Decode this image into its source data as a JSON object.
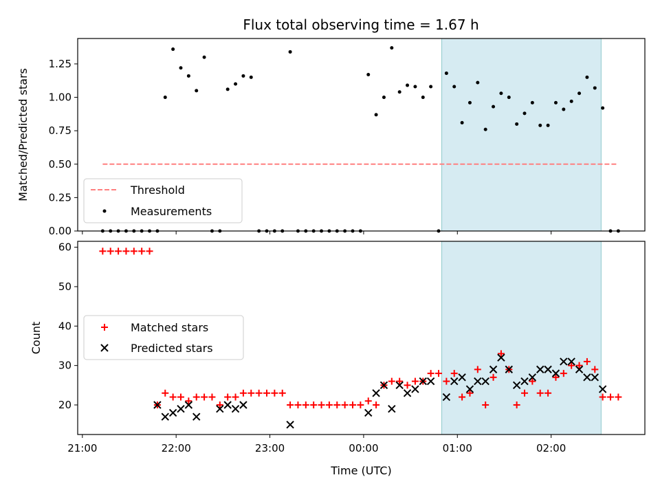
{
  "chart_data": [
    {
      "type": "scatter",
      "title": "Flux total observing time = 1.67 h",
      "ylabel": "Matched/Predicted stars",
      "xlabel": "",
      "ylim": [
        0,
        1.44
      ],
      "x_tick_labels": [],
      "y_ticks": [
        "0.00",
        "0.25",
        "0.50",
        "0.75",
        "1.00",
        "1.25"
      ],
      "highlight_region": {
        "x": [
          "00:50",
          "02:32"
        ],
        "color": "#add8e6"
      },
      "threshold": {
        "name": "Threshold",
        "y": 0.5,
        "x": [
          "21:13",
          "02:43"
        ],
        "color": "#ff7f7f"
      },
      "legend": [
        "Threshold",
        "Measurements"
      ],
      "legend_position": "lower-left",
      "series": [
        {
          "name": "Measurements",
          "color": "#000000",
          "x": [
            "21:13",
            "21:18",
            "21:23",
            "21:28",
            "21:33",
            "21:38",
            "21:43",
            "21:48",
            "21:53",
            "21:58",
            "22:03",
            "22:08",
            "22:13",
            "22:18",
            "22:23",
            "22:28",
            "22:33",
            "22:38",
            "22:43",
            "22:48",
            "22:53",
            "22:58",
            "23:03",
            "23:08",
            "23:13",
            "23:18",
            "23:23",
            "23:28",
            "23:33",
            "23:38",
            "23:43",
            "23:48",
            "23:53",
            "23:58",
            "00:03",
            "00:08",
            "00:13",
            "00:18",
            "00:23",
            "00:28",
            "00:33",
            "00:38",
            "00:43",
            "00:48",
            "00:53",
            "00:58",
            "01:03",
            "01:08",
            "01:13",
            "01:18",
            "01:23",
            "01:28",
            "01:33",
            "01:38",
            "01:43",
            "01:48",
            "01:53",
            "01:58",
            "02:03",
            "02:08",
            "02:13",
            "02:18",
            "02:23",
            "02:28",
            "02:33",
            "02:38",
            "02:43"
          ],
          "y": [
            0,
            0,
            0,
            0,
            0,
            0,
            0,
            0,
            1.0,
            1.36,
            1.22,
            1.16,
            1.05,
            1.3,
            0,
            0,
            1.06,
            1.1,
            1.16,
            1.15,
            0,
            0,
            0,
            0,
            1.34,
            0,
            0,
            0,
            0,
            0,
            0,
            0,
            0,
            0,
            1.17,
            0.87,
            1.0,
            1.37,
            1.04,
            1.09,
            1.08,
            1.0,
            1.08,
            0,
            1.18,
            1.08,
            0.81,
            0.96,
            1.11,
            0.76,
            0.93,
            1.03,
            1.0,
            0.8,
            0.88,
            0.96,
            0.79,
            0.79,
            0.96,
            0.91,
            0.97,
            1.03,
            1.15,
            1.07,
            0.92,
            0,
            0
          ]
        }
      ]
    },
    {
      "type": "scatter",
      "title": "",
      "ylabel": "Count",
      "xlabel": "Time (UTC)",
      "ylim": [
        12.5,
        61.5
      ],
      "x_tick_labels": [
        "21:00",
        "22:00",
        "23:00",
        "00:00",
        "01:00",
        "02:00"
      ],
      "y_ticks": [
        "20",
        "30",
        "40",
        "50",
        "60"
      ],
      "highlight_region": {
        "x": [
          "00:50",
          "02:32"
        ],
        "color": "#add8e6"
      },
      "legend": [
        "Matched stars",
        "Predicted stars"
      ],
      "legend_position": "center-left",
      "series": [
        {
          "name": "Matched stars",
          "marker": "plus",
          "color": "#ff0000",
          "x": [
            "21:13",
            "21:18",
            "21:23",
            "21:28",
            "21:33",
            "21:38",
            "21:43",
            "21:48",
            "21:53",
            "21:58",
            "22:03",
            "22:08",
            "22:13",
            "22:18",
            "22:23",
            "22:28",
            "22:33",
            "22:38",
            "22:43",
            "22:48",
            "22:53",
            "22:58",
            "23:03",
            "23:08",
            "23:13",
            "23:18",
            "23:23",
            "23:28",
            "23:33",
            "23:38",
            "23:43",
            "23:48",
            "23:53",
            "23:58",
            "00:03",
            "00:08",
            "00:13",
            "00:18",
            "00:23",
            "00:28",
            "00:33",
            "00:38",
            "00:43",
            "00:48",
            "00:53",
            "00:58",
            "01:03",
            "01:08",
            "01:13",
            "01:18",
            "01:23",
            "01:28",
            "01:33",
            "01:38",
            "01:43",
            "01:48",
            "01:53",
            "01:58",
            "02:03",
            "02:08",
            "02:13",
            "02:18",
            "02:23",
            "02:28",
            "02:33",
            "02:38",
            "02:43"
          ],
          "y": [
            59,
            59,
            59,
            59,
            59,
            59,
            59,
            20,
            23,
            22,
            22,
            21,
            22,
            22,
            22,
            20,
            22,
            22,
            23,
            23,
            23,
            23,
            23,
            23,
            20,
            20,
            20,
            20,
            20,
            20,
            20,
            20,
            20,
            20,
            21,
            20,
            25,
            26,
            26,
            25,
            26,
            26,
            28,
            28,
            26,
            28,
            22,
            23,
            29,
            20,
            27,
            33,
            29,
            20,
            23,
            26,
            23,
            23,
            27,
            28,
            30,
            30,
            31,
            29,
            22,
            22,
            22
          ]
        },
        {
          "name": "Predicted stars",
          "marker": "x",
          "color": "#000000",
          "x": [
            "21:48",
            "21:53",
            "21:58",
            "22:03",
            "22:08",
            "22:13",
            "22:28",
            "22:33",
            "22:38",
            "22:43",
            "23:13",
            "00:03",
            "00:08",
            "00:13",
            "00:18",
            "00:23",
            "00:28",
            "00:33",
            "00:38",
            "00:43",
            "00:53",
            "00:58",
            "01:03",
            "01:08",
            "01:13",
            "01:18",
            "01:23",
            "01:28",
            "01:33",
            "01:38",
            "01:43",
            "01:48",
            "01:53",
            "01:58",
            "02:03",
            "02:08",
            "02:13",
            "02:18",
            "02:23",
            "02:28",
            "02:33"
          ],
          "y": [
            20,
            17,
            18,
            19,
            20,
            17,
            19,
            20,
            19,
            20,
            15,
            18,
            23,
            25,
            19,
            25,
            23,
            24,
            26,
            26,
            22,
            26,
            27,
            24,
            26,
            26,
            29,
            32,
            29,
            25,
            26,
            27,
            29,
            29,
            28,
            31,
            31,
            29,
            27,
            27,
            24
          ]
        }
      ]
    }
  ]
}
